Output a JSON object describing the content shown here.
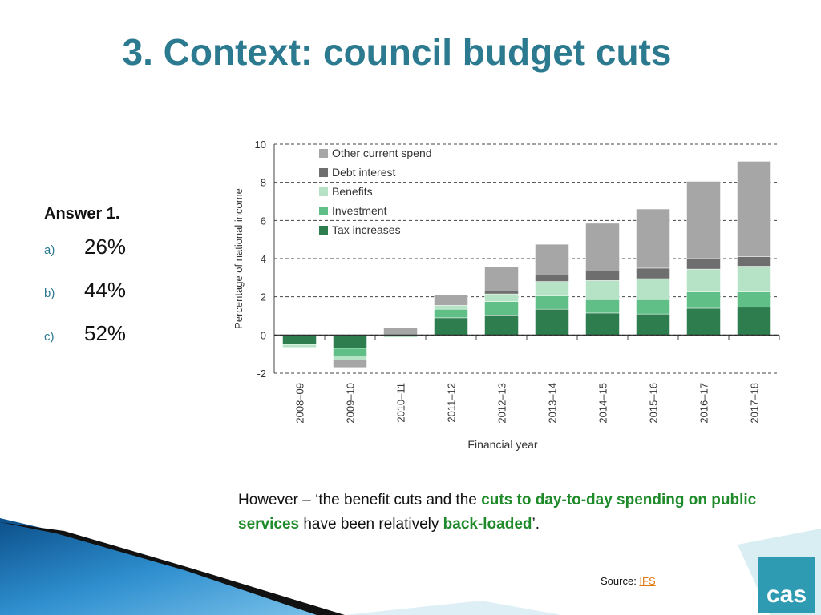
{
  "slide": {
    "title": "3. Context: council budget cuts"
  },
  "answer": {
    "heading": "Answer 1.",
    "options": [
      {
        "letter": "a)",
        "value": "26%"
      },
      {
        "letter": "b)",
        "value": "44%"
      },
      {
        "letter": "c)",
        "value": "52%"
      }
    ]
  },
  "quote": {
    "part1": "However – ‘the benefit cuts and the ",
    "highlight1": "cuts to day-to-day spending on public services",
    "part2": " have been relatively ",
    "highlight2": "back-loaded",
    "part3": "’."
  },
  "source": {
    "label": "Source: ",
    "link": "IFS"
  },
  "logo": {
    "text": "cas"
  },
  "colors": {
    "title": "#2b7a8f",
    "highlight": "#1e8a2a",
    "link": "#e07a14"
  },
  "chart_data": {
    "type": "bar",
    "stacked": true,
    "xlabel": "Financial year",
    "ylabel": "Percentage of national income",
    "ylim": [
      -2,
      10
    ],
    "yticks": [
      -2,
      0,
      2,
      4,
      6,
      8,
      10
    ],
    "grid": true,
    "legend_position": "top-left",
    "categories": [
      "2008–09",
      "2009–10",
      "2010–11",
      "2011–12",
      "2012–13",
      "2013–14",
      "2014–15",
      "2015–16",
      "2016–17",
      "2017–18"
    ],
    "series": [
      {
        "name": "Tax increases",
        "color": "#2e7d4f",
        "values": [
          -0.5,
          -0.7,
          0,
          0.9,
          1.05,
          1.35,
          1.15,
          1.1,
          1.4,
          1.45
        ]
      },
      {
        "name": "Investment",
        "color": "#5fbf86",
        "values": [
          0,
          -0.4,
          -0.1,
          0.45,
          0.7,
          0.7,
          0.7,
          0.75,
          0.85,
          0.8
        ]
      },
      {
        "name": "Benefits",
        "color": "#b6e3c6",
        "values": [
          -0.15,
          -0.2,
          0,
          0.2,
          0.4,
          0.75,
          1.0,
          1.1,
          1.2,
          1.35
        ]
      },
      {
        "name": "Debt interest",
        "color": "#6e6e6e",
        "values": [
          0,
          0,
          0,
          0,
          0.15,
          0.35,
          0.5,
          0.55,
          0.55,
          0.5
        ]
      },
      {
        "name": "Other current spend",
        "color": "#a6a6a6",
        "values": [
          0,
          -0.4,
          0.4,
          0.55,
          1.25,
          1.6,
          2.5,
          3.1,
          4.05,
          5.0
        ]
      }
    ]
  }
}
